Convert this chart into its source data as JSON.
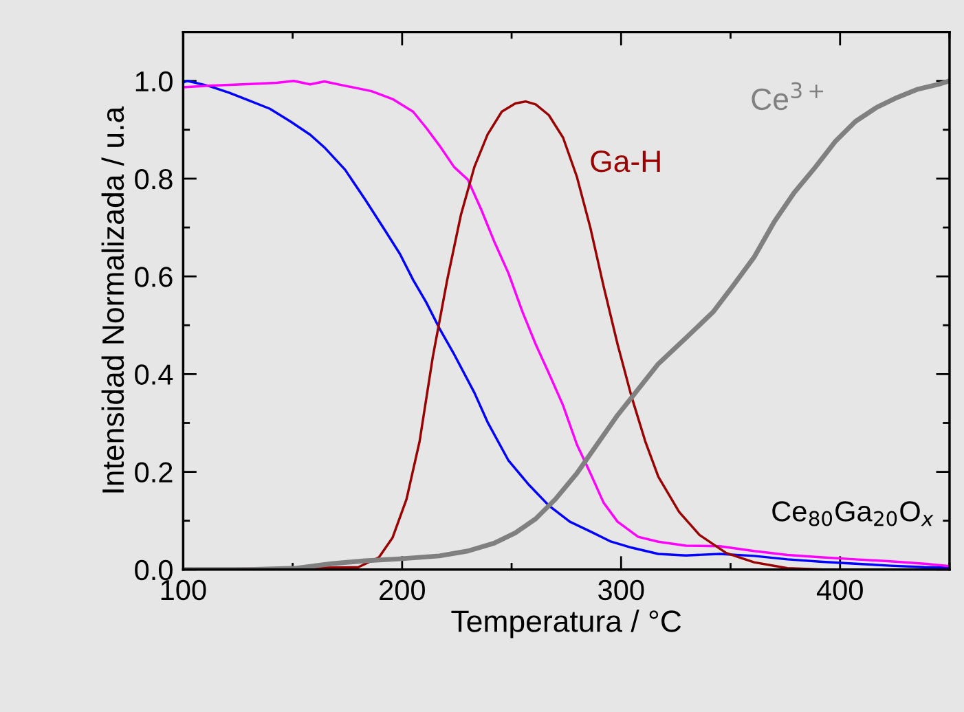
{
  "chart_data": {
    "type": "line",
    "xlabel": "Temperatura / °C",
    "ylabel": "Intensidad Normalizada / u.a",
    "xlim": [
      100,
      450
    ],
    "ylim": [
      0,
      1.1
    ],
    "xticks": [
      100,
      {
        "value": 150,
        "label": null
      },
      200,
      {
        "value": 250,
        "label": null
      },
      300,
      {
        "value": 350,
        "label": null
      },
      400,
      {
        "value": 450,
        "label": null
      }
    ],
    "yticks": [
      {
        "value": 0,
        "label": "0.0"
      },
      {
        "value": 0.1,
        "label": null
      },
      0.2,
      {
        "value": 0.3,
        "label": null
      },
      0.4,
      {
        "value": 0.5,
        "label": null
      },
      0.6,
      {
        "value": 0.7,
        "label": null
      },
      0.8,
      {
        "value": 0.9,
        "label": null
      },
      {
        "value": 1.0,
        "label": "1.0"
      }
    ],
    "grid": false,
    "legend": false,
    "marker": "none",
    "line_style": "solid",
    "annotations": [
      "Ce$_{80}$Ga$_{20}$O$_{x}$"
    ],
    "series": [
      {
        "color": "#0000ff",
        "x": [
          100,
          102,
          111.5,
          121,
          130,
          139.6,
          149,
          158,
          164.5,
          174,
          183,
          192.5,
          199,
          205,
          211,
          217,
          223.7,
          233,
          239,
          248.6,
          258,
          267,
          276.6,
          286,
          295,
          304.7,
          317,
          329.6,
          345,
          360.7,
          376,
          392,
          407,
          423,
          438.6,
          450
        ],
        "values": [
          0.997,
          1.0,
          0.99,
          0.976,
          0.96,
          0.943,
          0.917,
          0.89,
          0.864,
          0.818,
          0.758,
          0.692,
          0.646,
          0.593,
          0.547,
          0.494,
          0.441,
          0.362,
          0.302,
          0.223,
          0.173,
          0.131,
          0.098,
          0.078,
          0.058,
          0.045,
          0.032,
          0.029,
          0.032,
          0.028,
          0.021,
          0.016,
          0.012,
          0.008,
          0.005,
          0.004
        ]
      },
      {
        "color": "#ff00ff",
        "x": [
          100,
          111.5,
          127,
          142.7,
          150.5,
          158,
          164.5,
          174,
          186,
          195.6,
          205,
          211,
          217,
          223.7,
          230,
          236,
          242,
          248.6,
          255,
          261,
          267,
          273.5,
          279.8,
          286,
          292,
          298.4,
          307.8,
          317,
          329.6,
          345,
          360.7,
          376,
          392,
          407,
          423,
          438.6,
          450
        ],
        "values": [
          0.987,
          0.99,
          0.993,
          0.996,
          1.0,
          0.993,
          0.999,
          0.99,
          0.979,
          0.963,
          0.937,
          0.904,
          0.868,
          0.824,
          0.798,
          0.738,
          0.672,
          0.606,
          0.527,
          0.461,
          0.402,
          0.336,
          0.256,
          0.197,
          0.137,
          0.098,
          0.067,
          0.057,
          0.049,
          0.048,
          0.038,
          0.03,
          0.025,
          0.021,
          0.017,
          0.012,
          0.007
        ]
      },
      {
        "name": "Ga-H",
        "color": "#990000",
        "x": [
          100,
          180,
          189.4,
          195.6,
          202,
          208,
          214,
          220.6,
          226.8,
          233,
          239,
          245.5,
          251.7,
          256.4,
          261,
          267,
          273.5,
          279.8,
          286,
          292,
          298.4,
          304.7,
          311,
          317,
          326.5,
          335.8,
          348,
          360.7,
          376,
          392,
          450
        ],
        "values": [
          0,
          0.005,
          0.025,
          0.065,
          0.144,
          0.263,
          0.435,
          0.593,
          0.725,
          0.824,
          0.89,
          0.937,
          0.954,
          0.958,
          0.952,
          0.93,
          0.884,
          0.804,
          0.699,
          0.58,
          0.461,
          0.355,
          0.263,
          0.19,
          0.118,
          0.071,
          0.034,
          0.015,
          0.003,
          0,
          0
        ]
      },
      {
        "name": "Ce$^{3+}$",
        "color": "#808080",
        "x": [
          100,
          130,
          152,
          167.6,
          183,
          199,
          217,
          230,
          242,
          251.7,
          261,
          270,
          279.8,
          289,
          298.4,
          307.8,
          317,
          329.6,
          342,
          351,
          360.7,
          370,
          379,
          388.8,
          398,
          407,
          416.8,
          426,
          435.5,
          445,
          450
        ],
        "values": [
          0,
          0,
          0.003,
          0.012,
          0.018,
          0.022,
          0.028,
          0.038,
          0.054,
          0.075,
          0.104,
          0.144,
          0.197,
          0.256,
          0.316,
          0.369,
          0.421,
          0.474,
          0.527,
          0.58,
          0.639,
          0.712,
          0.771,
          0.824,
          0.877,
          0.917,
          0.946,
          0.966,
          0.983,
          0.993,
          1.0
        ]
      }
    ]
  }
}
